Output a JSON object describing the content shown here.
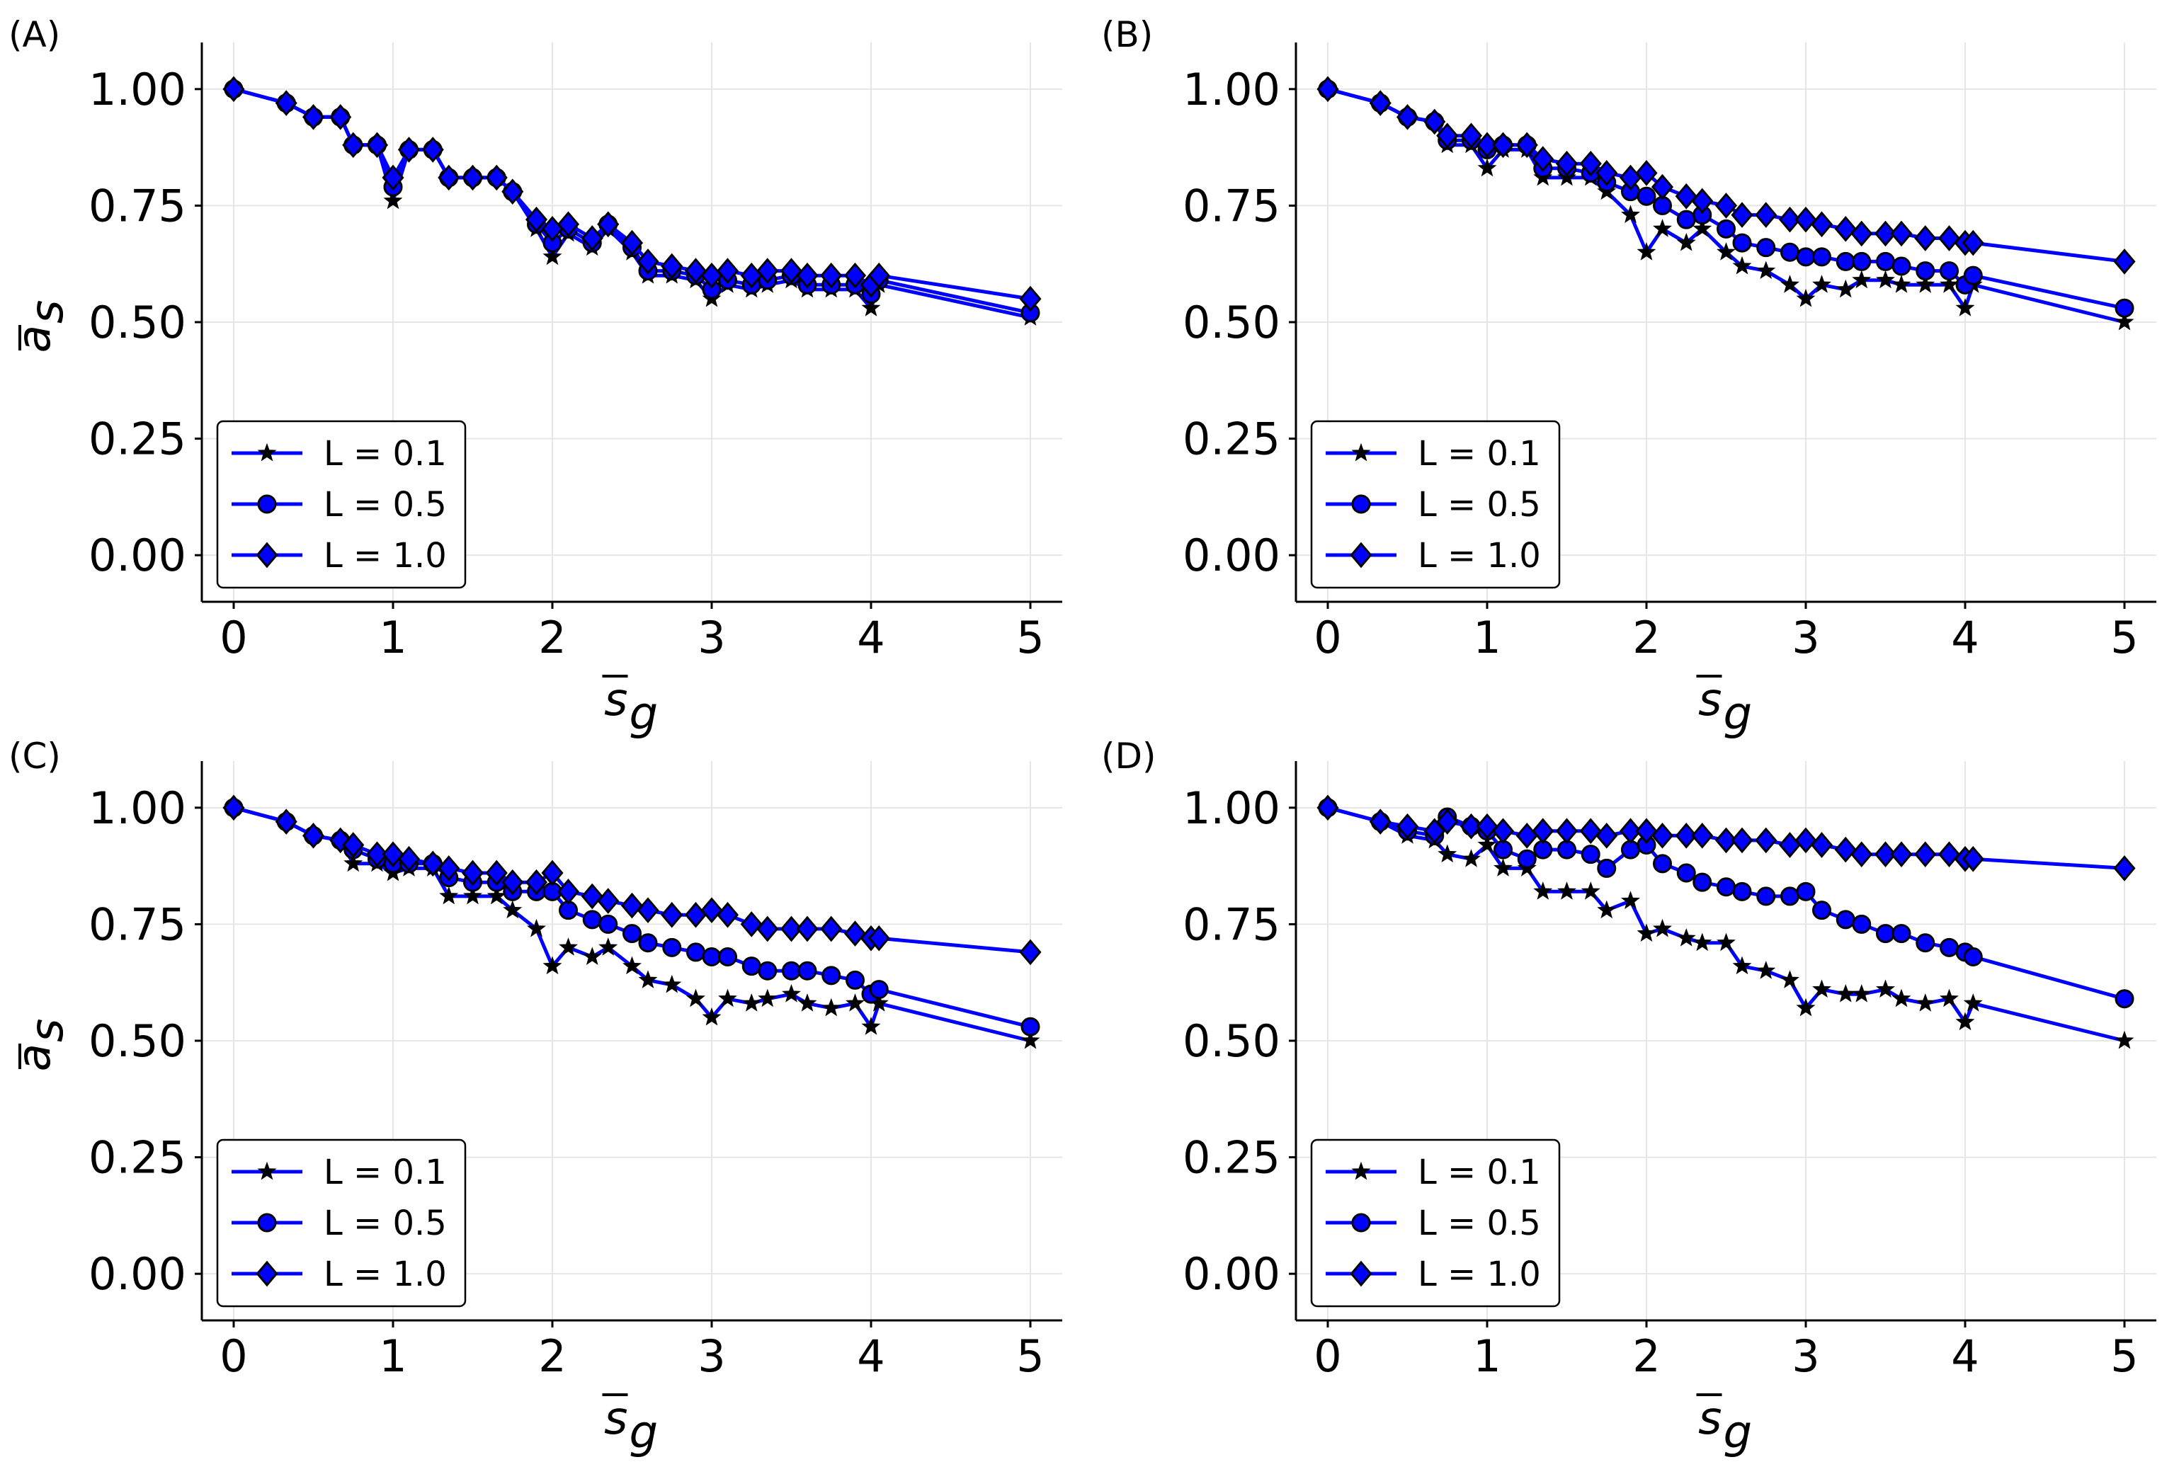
{
  "figure": {
    "colors": {
      "line": "#0000ff",
      "marker_fill": "#0000ff",
      "marker_edge": "#000000",
      "grid": "#e6e6e6",
      "axis": "#000000",
      "legend_edge": "#000000"
    }
  },
  "chart_data": [
    {
      "type": "line",
      "panel_label": "(A)",
      "xlabel": "s̅g",
      "ylabel": "a̅s",
      "xlabel_base": "s",
      "xlabel_sub": "g",
      "ylabel_base": "a",
      "ylabel_sub": "s",
      "xlim": [
        -0.2,
        5.2
      ],
      "ylim": [
        -0.1,
        1.1
      ],
      "xticks": [
        0,
        1,
        2,
        3,
        4,
        5
      ],
      "xtick_labels": [
        "0",
        "1",
        "2",
        "3",
        "4",
        "5"
      ],
      "yticks": [
        0.0,
        0.25,
        0.5,
        0.75,
        1.0
      ],
      "ytick_labels": [
        "0.00",
        "0.25",
        "0.50",
        "0.75",
        "1.00"
      ],
      "grid": true,
      "legend_position": "lower-left",
      "series": [
        {
          "name": "L = 0.1",
          "marker": "star",
          "x": [
            0,
            0.33,
            0.5,
            0.67,
            0.75,
            0.9,
            1.0,
            1.1,
            1.25,
            1.35,
            1.5,
            1.65,
            1.75,
            1.9,
            2.0,
            2.1,
            2.25,
            2.35,
            2.5,
            2.6,
            2.75,
            2.9,
            3.0,
            3.1,
            3.25,
            3.35,
            3.5,
            3.6,
            3.75,
            3.9,
            4.0,
            4.05,
            5.0
          ],
          "y": [
            1.0,
            0.97,
            0.94,
            0.94,
            0.88,
            0.88,
            0.76,
            0.87,
            0.87,
            0.81,
            0.81,
            0.81,
            0.78,
            0.7,
            0.64,
            0.69,
            0.66,
            0.7,
            0.65,
            0.6,
            0.6,
            0.59,
            0.55,
            0.58,
            0.57,
            0.58,
            0.59,
            0.57,
            0.57,
            0.57,
            0.53,
            0.58,
            0.51
          ]
        },
        {
          "name": "L = 0.5",
          "marker": "circle",
          "x": [
            0,
            0.33,
            0.5,
            0.67,
            0.75,
            0.9,
            1.0,
            1.1,
            1.25,
            1.35,
            1.5,
            1.65,
            1.75,
            1.9,
            2.0,
            2.1,
            2.25,
            2.35,
            2.5,
            2.6,
            2.75,
            2.9,
            3.0,
            3.1,
            3.25,
            3.35,
            3.5,
            3.6,
            3.75,
            3.9,
            4.0,
            4.05,
            5.0
          ],
          "y": [
            1.0,
            0.97,
            0.94,
            0.94,
            0.88,
            0.88,
            0.79,
            0.87,
            0.87,
            0.81,
            0.81,
            0.81,
            0.78,
            0.71,
            0.67,
            0.7,
            0.67,
            0.71,
            0.66,
            0.61,
            0.61,
            0.6,
            0.57,
            0.59,
            0.58,
            0.59,
            0.6,
            0.58,
            0.58,
            0.58,
            0.56,
            0.59,
            0.52
          ]
        },
        {
          "name": "L = 1.0",
          "marker": "diamond",
          "x": [
            0,
            0.33,
            0.5,
            0.67,
            0.75,
            0.9,
            1.0,
            1.1,
            1.25,
            1.35,
            1.5,
            1.65,
            1.75,
            1.9,
            2.0,
            2.1,
            2.25,
            2.35,
            2.5,
            2.6,
            2.75,
            2.9,
            3.0,
            3.1,
            3.25,
            3.35,
            3.5,
            3.6,
            3.75,
            3.9,
            4.0,
            4.05,
            5.0
          ],
          "y": [
            1.0,
            0.97,
            0.94,
            0.94,
            0.88,
            0.88,
            0.81,
            0.87,
            0.87,
            0.81,
            0.81,
            0.81,
            0.78,
            0.72,
            0.7,
            0.71,
            0.68,
            0.71,
            0.67,
            0.63,
            0.62,
            0.61,
            0.6,
            0.61,
            0.6,
            0.61,
            0.61,
            0.6,
            0.6,
            0.6,
            0.58,
            0.6,
            0.55
          ]
        }
      ]
    },
    {
      "type": "line",
      "panel_label": "(B)",
      "xlabel": "s̅g",
      "ylabel": "a̅s",
      "xlabel_base": "s",
      "xlabel_sub": "g",
      "ylabel_base": "a",
      "ylabel_sub": "s",
      "xlim": [
        -0.2,
        5.2
      ],
      "ylim": [
        -0.1,
        1.1
      ],
      "xticks": [
        0,
        1,
        2,
        3,
        4,
        5
      ],
      "xtick_labels": [
        "0",
        "1",
        "2",
        "3",
        "4",
        "5"
      ],
      "yticks": [
        0.0,
        0.25,
        0.5,
        0.75,
        1.0
      ],
      "ytick_labels": [
        "0.00",
        "0.25",
        "0.50",
        "0.75",
        "1.00"
      ],
      "grid": true,
      "legend_position": "lower-left",
      "series": [
        {
          "name": "L = 0.1",
          "marker": "star",
          "x": [
            0,
            0.33,
            0.5,
            0.67,
            0.75,
            0.9,
            1.0,
            1.1,
            1.25,
            1.35,
            1.5,
            1.65,
            1.75,
            1.9,
            2.0,
            2.1,
            2.25,
            2.35,
            2.5,
            2.6,
            2.75,
            2.9,
            3.0,
            3.1,
            3.25,
            3.35,
            3.5,
            3.6,
            3.75,
            3.9,
            4.0,
            4.05,
            5.0
          ],
          "y": [
            1.0,
            0.97,
            0.94,
            0.93,
            0.88,
            0.88,
            0.83,
            0.87,
            0.87,
            0.81,
            0.81,
            0.81,
            0.78,
            0.73,
            0.65,
            0.7,
            0.67,
            0.7,
            0.65,
            0.62,
            0.61,
            0.58,
            0.55,
            0.58,
            0.57,
            0.59,
            0.59,
            0.58,
            0.58,
            0.58,
            0.53,
            0.58,
            0.5
          ]
        },
        {
          "name": "L = 0.5",
          "marker": "circle",
          "x": [
            0,
            0.33,
            0.5,
            0.67,
            0.75,
            0.9,
            1.0,
            1.1,
            1.25,
            1.35,
            1.5,
            1.65,
            1.75,
            1.9,
            2.0,
            2.1,
            2.25,
            2.35,
            2.5,
            2.6,
            2.75,
            2.9,
            3.0,
            3.1,
            3.25,
            3.35,
            3.5,
            3.6,
            3.75,
            3.9,
            4.0,
            4.05,
            5.0
          ],
          "y": [
            1.0,
            0.97,
            0.94,
            0.93,
            0.89,
            0.89,
            0.87,
            0.88,
            0.88,
            0.83,
            0.83,
            0.82,
            0.8,
            0.78,
            0.77,
            0.75,
            0.72,
            0.73,
            0.7,
            0.67,
            0.66,
            0.65,
            0.64,
            0.64,
            0.63,
            0.63,
            0.63,
            0.62,
            0.61,
            0.61,
            0.58,
            0.6,
            0.53
          ]
        },
        {
          "name": "L = 1.0",
          "marker": "diamond",
          "x": [
            0,
            0.33,
            0.5,
            0.67,
            0.75,
            0.9,
            1.0,
            1.1,
            1.25,
            1.35,
            1.5,
            1.65,
            1.75,
            1.9,
            2.0,
            2.1,
            2.25,
            2.35,
            2.5,
            2.6,
            2.75,
            2.9,
            3.0,
            3.1,
            3.25,
            3.35,
            3.5,
            3.6,
            3.75,
            3.9,
            4.0,
            4.05,
            5.0
          ],
          "y": [
            1.0,
            0.97,
            0.94,
            0.93,
            0.9,
            0.9,
            0.88,
            0.88,
            0.88,
            0.85,
            0.84,
            0.84,
            0.82,
            0.81,
            0.82,
            0.79,
            0.77,
            0.76,
            0.75,
            0.73,
            0.73,
            0.72,
            0.72,
            0.71,
            0.7,
            0.69,
            0.69,
            0.69,
            0.68,
            0.68,
            0.67,
            0.67,
            0.63
          ]
        }
      ]
    },
    {
      "type": "line",
      "panel_label": "(C)",
      "xlabel": "s̅g",
      "ylabel": "a̅s",
      "xlabel_base": "s",
      "xlabel_sub": "g",
      "ylabel_base": "a",
      "ylabel_sub": "s",
      "xlim": [
        -0.2,
        5.2
      ],
      "ylim": [
        -0.1,
        1.1
      ],
      "xticks": [
        0,
        1,
        2,
        3,
        4,
        5
      ],
      "xtick_labels": [
        "0",
        "1",
        "2",
        "3",
        "4",
        "5"
      ],
      "yticks": [
        0.0,
        0.25,
        0.5,
        0.75,
        1.0
      ],
      "ytick_labels": [
        "0.00",
        "0.25",
        "0.50",
        "0.75",
        "1.00"
      ],
      "grid": true,
      "legend_position": "lower-left",
      "series": [
        {
          "name": "L = 0.1",
          "marker": "star",
          "x": [
            0,
            0.33,
            0.5,
            0.67,
            0.75,
            0.9,
            1.0,
            1.1,
            1.25,
            1.35,
            1.5,
            1.65,
            1.75,
            1.9,
            2.0,
            2.1,
            2.25,
            2.35,
            2.5,
            2.6,
            2.75,
            2.9,
            3.0,
            3.1,
            3.25,
            3.35,
            3.5,
            3.6,
            3.75,
            3.9,
            4.0,
            4.05,
            5.0
          ],
          "y": [
            1.0,
            0.97,
            0.94,
            0.93,
            0.88,
            0.88,
            0.86,
            0.87,
            0.87,
            0.81,
            0.81,
            0.81,
            0.78,
            0.74,
            0.66,
            0.7,
            0.68,
            0.7,
            0.66,
            0.63,
            0.62,
            0.59,
            0.55,
            0.59,
            0.58,
            0.59,
            0.6,
            0.58,
            0.57,
            0.58,
            0.53,
            0.58,
            0.5
          ]
        },
        {
          "name": "L = 0.5",
          "marker": "circle",
          "x": [
            0,
            0.33,
            0.5,
            0.67,
            0.75,
            0.9,
            1.0,
            1.1,
            1.25,
            1.35,
            1.5,
            1.65,
            1.75,
            1.9,
            2.0,
            2.1,
            2.25,
            2.35,
            2.5,
            2.6,
            2.75,
            2.9,
            3.0,
            3.1,
            3.25,
            3.35,
            3.5,
            3.6,
            3.75,
            3.9,
            4.0,
            4.05,
            5.0
          ],
          "y": [
            1.0,
            0.97,
            0.94,
            0.93,
            0.91,
            0.89,
            0.88,
            0.88,
            0.88,
            0.85,
            0.84,
            0.84,
            0.82,
            0.82,
            0.82,
            0.78,
            0.76,
            0.75,
            0.73,
            0.71,
            0.7,
            0.69,
            0.68,
            0.68,
            0.66,
            0.65,
            0.65,
            0.65,
            0.64,
            0.63,
            0.6,
            0.61,
            0.53
          ]
        },
        {
          "name": "L = 1.0",
          "marker": "diamond",
          "x": [
            0,
            0.33,
            0.5,
            0.67,
            0.75,
            0.9,
            1.0,
            1.1,
            1.25,
            1.35,
            1.5,
            1.65,
            1.75,
            1.9,
            2.0,
            2.1,
            2.25,
            2.35,
            2.5,
            2.6,
            2.75,
            2.9,
            3.0,
            3.1,
            3.25,
            3.35,
            3.5,
            3.6,
            3.75,
            3.9,
            4.0,
            4.05,
            5.0
          ],
          "y": [
            1.0,
            0.97,
            0.94,
            0.93,
            0.92,
            0.9,
            0.9,
            0.89,
            0.88,
            0.87,
            0.86,
            0.86,
            0.84,
            0.84,
            0.86,
            0.82,
            0.81,
            0.8,
            0.79,
            0.78,
            0.77,
            0.77,
            0.78,
            0.77,
            0.75,
            0.74,
            0.74,
            0.74,
            0.74,
            0.73,
            0.72,
            0.72,
            0.69
          ]
        }
      ]
    },
    {
      "type": "line",
      "panel_label": "(D)",
      "xlabel": "s̅g",
      "ylabel": "a̅s",
      "xlabel_base": "s",
      "xlabel_sub": "g",
      "ylabel_base": "a",
      "ylabel_sub": "s",
      "xlim": [
        -0.2,
        5.2
      ],
      "ylim": [
        -0.1,
        1.1
      ],
      "xticks": [
        0,
        1,
        2,
        3,
        4,
        5
      ],
      "xtick_labels": [
        "0",
        "1",
        "2",
        "3",
        "4",
        "5"
      ],
      "yticks": [
        0.0,
        0.25,
        0.5,
        0.75,
        1.0
      ],
      "ytick_labels": [
        "0.00",
        "0.25",
        "0.50",
        "0.75",
        "1.00"
      ],
      "grid": true,
      "legend_position": "lower-left",
      "series": [
        {
          "name": "L = 0.1",
          "marker": "star",
          "x": [
            0,
            0.33,
            0.5,
            0.67,
            0.75,
            0.9,
            1.0,
            1.1,
            1.25,
            1.35,
            1.5,
            1.65,
            1.75,
            1.9,
            2.0,
            2.1,
            2.25,
            2.35,
            2.5,
            2.6,
            2.75,
            2.9,
            3.0,
            3.1,
            3.25,
            3.35,
            3.5,
            3.6,
            3.75,
            3.9,
            4.0,
            4.05,
            5.0
          ],
          "y": [
            1.0,
            0.97,
            0.94,
            0.93,
            0.9,
            0.89,
            0.92,
            0.87,
            0.87,
            0.82,
            0.82,
            0.82,
            0.78,
            0.8,
            0.73,
            0.74,
            0.72,
            0.71,
            0.71,
            0.66,
            0.65,
            0.63,
            0.57,
            0.61,
            0.6,
            0.6,
            0.61,
            0.59,
            0.58,
            0.59,
            0.54,
            0.58,
            0.5
          ]
        },
        {
          "name": "L = 0.5",
          "marker": "circle",
          "x": [
            0,
            0.33,
            0.5,
            0.67,
            0.75,
            0.9,
            1.0,
            1.1,
            1.25,
            1.35,
            1.5,
            1.65,
            1.75,
            1.9,
            2.0,
            2.1,
            2.25,
            2.35,
            2.5,
            2.6,
            2.75,
            2.9,
            3.0,
            3.1,
            3.25,
            3.35,
            3.5,
            3.6,
            3.75,
            3.9,
            4.0,
            4.05,
            5.0
          ],
          "y": [
            1.0,
            0.97,
            0.95,
            0.94,
            0.98,
            0.96,
            0.95,
            0.91,
            0.89,
            0.91,
            0.91,
            0.9,
            0.87,
            0.91,
            0.92,
            0.88,
            0.86,
            0.84,
            0.83,
            0.82,
            0.81,
            0.81,
            0.82,
            0.78,
            0.76,
            0.75,
            0.73,
            0.73,
            0.71,
            0.7,
            0.69,
            0.68,
            0.59
          ]
        },
        {
          "name": "L = 1.0",
          "marker": "diamond",
          "x": [
            0,
            0.33,
            0.5,
            0.67,
            0.75,
            0.9,
            1.0,
            1.1,
            1.25,
            1.35,
            1.5,
            1.65,
            1.75,
            1.9,
            2.0,
            2.1,
            2.25,
            2.35,
            2.5,
            2.6,
            2.75,
            2.9,
            3.0,
            3.1,
            3.25,
            3.35,
            3.5,
            3.6,
            3.75,
            3.9,
            4.0,
            4.05,
            5.0
          ],
          "y": [
            1.0,
            0.97,
            0.96,
            0.95,
            0.97,
            0.96,
            0.96,
            0.95,
            0.94,
            0.95,
            0.95,
            0.95,
            0.94,
            0.95,
            0.95,
            0.94,
            0.94,
            0.94,
            0.93,
            0.93,
            0.93,
            0.92,
            0.93,
            0.92,
            0.91,
            0.9,
            0.9,
            0.9,
            0.9,
            0.9,
            0.89,
            0.89,
            0.87
          ]
        }
      ]
    }
  ]
}
